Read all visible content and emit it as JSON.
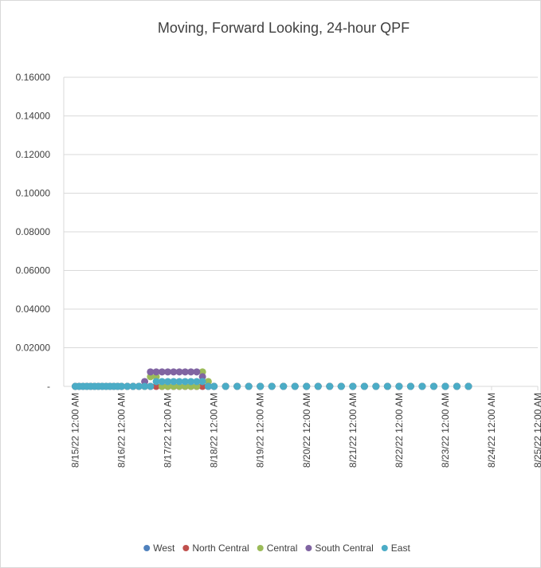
{
  "chart_data": {
    "type": "scatter",
    "title": "Moving, Forward Looking, 24-hour QPF",
    "x": [
      "2022-08-15T00:00",
      "2022-08-15T02:00",
      "2022-08-15T04:00",
      "2022-08-15T06:00",
      "2022-08-15T08:00",
      "2022-08-15T10:00",
      "2022-08-15T12:00",
      "2022-08-15T14:00",
      "2022-08-15T16:00",
      "2022-08-15T18:00",
      "2022-08-15T20:00",
      "2022-08-15T22:00",
      "2022-08-16T00:00",
      "2022-08-16T03:00",
      "2022-08-16T06:00",
      "2022-08-16T09:00",
      "2022-08-16T12:00",
      "2022-08-16T15:00",
      "2022-08-16T18:00",
      "2022-08-16T21:00",
      "2022-08-17T00:00",
      "2022-08-17T03:00",
      "2022-08-17T06:00",
      "2022-08-17T09:00",
      "2022-08-17T12:00",
      "2022-08-17T15:00",
      "2022-08-17T18:00",
      "2022-08-17T21:00",
      "2022-08-18T00:00",
      "2022-08-18T06:00",
      "2022-08-18T12:00",
      "2022-08-18T18:00",
      "2022-08-19T00:00",
      "2022-08-19T06:00",
      "2022-08-19T12:00",
      "2022-08-19T18:00",
      "2022-08-20T00:00",
      "2022-08-20T06:00",
      "2022-08-20T12:00",
      "2022-08-20T18:00",
      "2022-08-21T00:00",
      "2022-08-21T06:00",
      "2022-08-21T12:00",
      "2022-08-21T18:00",
      "2022-08-22T00:00",
      "2022-08-22T06:00",
      "2022-08-22T12:00",
      "2022-08-22T18:00",
      "2022-08-23T00:00",
      "2022-08-23T06:00",
      "2022-08-23T12:00"
    ],
    "series": [
      {
        "name": "West",
        "color": "#4f81bd",
        "values": [
          0,
          0,
          0,
          0,
          0,
          0,
          0,
          0,
          0,
          0,
          0,
          0,
          0,
          0,
          0,
          0,
          0,
          0,
          0,
          0,
          0,
          0,
          0,
          0,
          0,
          0,
          0,
          0,
          0,
          0,
          0,
          0,
          0,
          0,
          0,
          0,
          0,
          0,
          0,
          0,
          0,
          0,
          0,
          0,
          0,
          0,
          0,
          0,
          0,
          0,
          0
        ]
      },
      {
        "name": "North Central",
        "color": "#c0504d",
        "values": [
          0,
          0,
          0,
          0,
          0,
          0,
          0,
          0,
          0,
          0,
          0,
          0,
          0,
          0,
          0,
          0,
          0,
          0,
          0,
          0,
          0,
          0,
          0,
          0,
          0,
          0,
          0,
          0,
          0,
          0,
          0,
          0,
          0,
          0,
          0,
          0,
          0,
          0,
          0,
          0,
          0,
          0,
          0,
          0,
          0,
          0,
          0,
          0,
          0,
          0,
          0
        ]
      },
      {
        "name": "Central",
        "color": "#9bbb59",
        "values": [
          0,
          0,
          0,
          0,
          0,
          0,
          0,
          0,
          0,
          0,
          0,
          0,
          0,
          0,
          0,
          0,
          0,
          0.005,
          0.005,
          0,
          0,
          0,
          0,
          0,
          0,
          0,
          0.0075,
          0.0025,
          0,
          0,
          0,
          0,
          0,
          0,
          0,
          0,
          0,
          0,
          0,
          0,
          0,
          0,
          0,
          0,
          0,
          0,
          0,
          0,
          0,
          0,
          0
        ]
      },
      {
        "name": "South Central",
        "color": "#8064a2",
        "values": [
          0,
          0,
          0,
          0,
          0,
          0,
          0,
          0,
          0,
          0,
          0,
          0,
          0,
          0,
          0,
          0,
          0.0025,
          0.0075,
          0.0075,
          0.0075,
          0.0075,
          0.0075,
          0.0075,
          0.0075,
          0.0075,
          0.0075,
          0.005,
          0,
          0,
          0,
          0,
          0,
          0,
          0,
          0,
          0,
          0,
          0,
          0,
          0,
          0,
          0,
          0,
          0,
          0,
          0,
          0,
          0,
          0,
          0,
          0
        ]
      },
      {
        "name": "East",
        "color": "#4bacc6",
        "values": [
          0,
          0,
          0,
          0,
          0,
          0,
          0,
          0,
          0,
          0,
          0,
          0,
          0,
          0,
          0,
          0,
          0,
          0,
          0.0025,
          0.0025,
          0.0025,
          0.0025,
          0.0025,
          0.0025,
          0.0025,
          0.0025,
          0.0025,
          0,
          0,
          0,
          0,
          0,
          0,
          0,
          0,
          0,
          0,
          0,
          0,
          0,
          0,
          0,
          0,
          0,
          0,
          0,
          0,
          0,
          0,
          0,
          0
        ]
      }
    ],
    "xlim": [
      "2022-08-14T18:00",
      "2022-08-25T00:00"
    ],
    "xticks": [
      {
        "value": "2022-08-15T00:00",
        "label": "8/15/22 12:00 AM"
      },
      {
        "value": "2022-08-16T00:00",
        "label": "8/16/22 12:00 AM"
      },
      {
        "value": "2022-08-17T00:00",
        "label": "8/17/22 12:00 AM"
      },
      {
        "value": "2022-08-18T00:00",
        "label": "8/18/22 12:00 AM"
      },
      {
        "value": "2022-08-19T00:00",
        "label": "8/19/22 12:00 AM"
      },
      {
        "value": "2022-08-20T00:00",
        "label": "8/20/22 12:00 AM"
      },
      {
        "value": "2022-08-21T00:00",
        "label": "8/21/22 12:00 AM"
      },
      {
        "value": "2022-08-22T00:00",
        "label": "8/22/22 12:00 AM"
      },
      {
        "value": "2022-08-23T00:00",
        "label": "8/23/22 12:00 AM"
      },
      {
        "value": "2022-08-24T00:00",
        "label": "8/24/22 12:00 AM"
      },
      {
        "value": "2022-08-25T00:00",
        "label": "8/25/22 12:00 AM"
      }
    ],
    "ylim": [
      0,
      0.16
    ],
    "yticks": [
      {
        "value": 0,
        "label": "-"
      },
      {
        "value": 0.02,
        "label": "0.02000"
      },
      {
        "value": 0.04,
        "label": "0.04000"
      },
      {
        "value": 0.06,
        "label": "0.06000"
      },
      {
        "value": 0.08,
        "label": "0.08000"
      },
      {
        "value": 0.1,
        "label": "0.10000"
      },
      {
        "value": 0.12,
        "label": "0.12000"
      },
      {
        "value": 0.14,
        "label": "0.14000"
      },
      {
        "value": 0.16,
        "label": "0.16000"
      }
    ],
    "grid": true,
    "legend": "bottom"
  }
}
